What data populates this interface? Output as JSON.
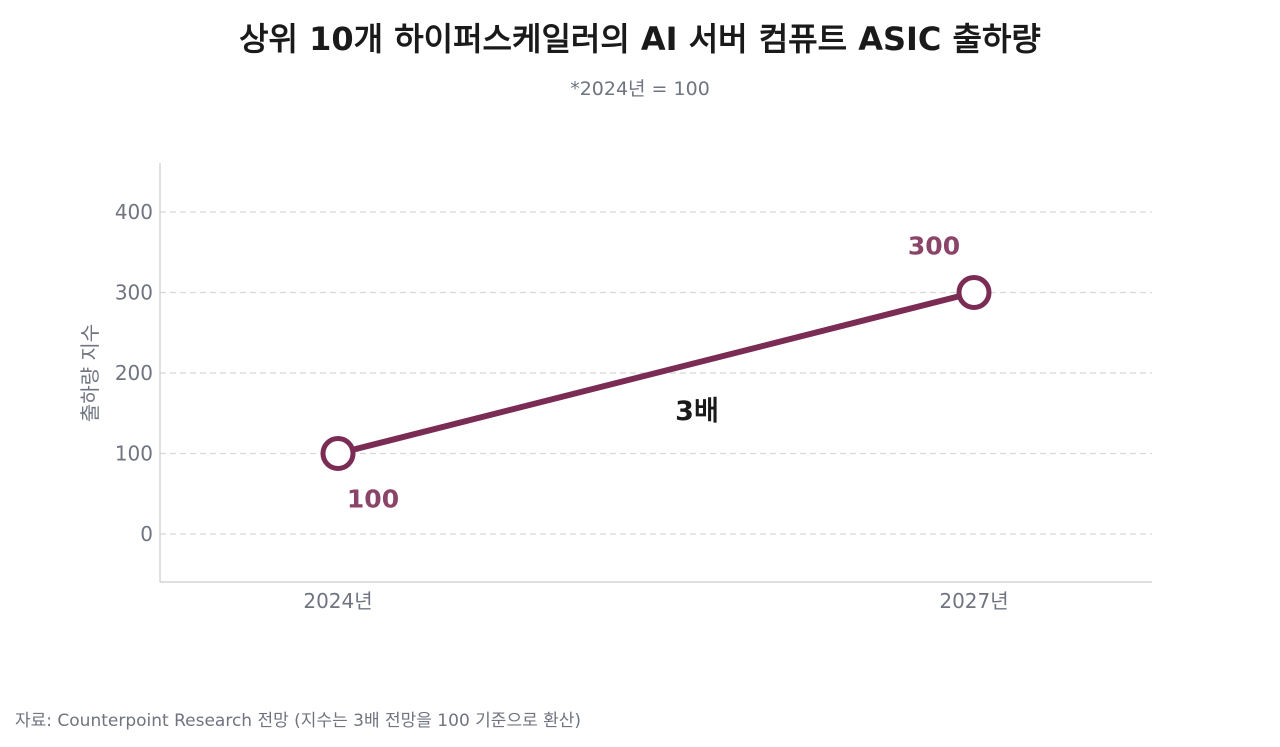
{
  "title": "상위 10개 하이퍼스케일러의 AI 서버 컴퓨트 ASIC 출하량",
  "subtitle": "*2024년 = 100",
  "source": "자료: Counterpoint Research 전망 (지수는 3배 전망을 100 기준으로 환산)",
  "colors": {
    "series": "#7b2c54",
    "point_label": "#8a4468",
    "axis_text": "#6f7480",
    "grid": "#d6d8dd",
    "annotation": "#1a1a1a"
  },
  "chart_data": {
    "type": "line",
    "categories": [
      "2024년",
      "2027년"
    ],
    "series": [
      {
        "values": [
          100,
          300
        ]
      }
    ],
    "data_labels": [
      "100",
      "300"
    ],
    "annotation": "3배",
    "ylabel": "출하량 지수",
    "xlabel": "",
    "ylim": [
      0,
      400
    ],
    "yticks": [
      0,
      100,
      200,
      300,
      400
    ],
    "grid": true,
    "legend": "none"
  }
}
